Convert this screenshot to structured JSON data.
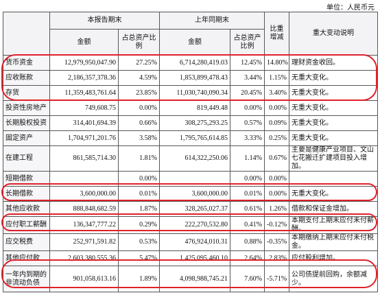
{
  "header": {
    "unit": "单位：人民币元"
  },
  "table": {
    "group_headers": [
      "本报告期末",
      "上年同期末",
      "比重增减",
      "重大变动说明"
    ],
    "sub_headers": [
      "金额",
      "占总资产比例",
      "金额",
      "占总资产比例"
    ],
    "rows": [
      [
        "货币资金",
        "12,979,950,047.90",
        "27.25%",
        "6,714,280,419.03",
        "12.45%",
        "14.80%",
        "理财资金收回。"
      ],
      [
        "应收账款",
        "2,186,357,378.36",
        "4.59%",
        "1,853,899,478.43",
        "3.44%",
        "1.15%",
        "无重大变化。"
      ],
      [
        "存货",
        "11,359,483,761.64",
        "23.85%",
        "11,030,740,090.34",
        "20.45%",
        "3.40%",
        "无重大变化。"
      ],
      [
        "投资性房地产",
        "749,608.75",
        "0.00%",
        "819,449.48",
        "0.00%",
        "0.00%",
        "无重大变化。"
      ],
      [
        "长期股权投资",
        "314,401,694.39",
        "0.66%",
        "308,275,293.25",
        "0.57%",
        "0.09%",
        "无重大变化。"
      ],
      [
        "固定资产",
        "1,704,971,201.76",
        "3.58%",
        "1,795,765,614.85",
        "3.33%",
        "0.25%",
        "无重大变化。"
      ],
      [
        "在建工程",
        "861,585,714.30",
        "1.81%",
        "614,322,250.06",
        "1.14%",
        "0.67%",
        "主要是健康产业项目、文山七花搬迁扩建项目投入增加。"
      ],
      [
        "短期借款",
        null,
        "0.00%",
        null,
        "0.00%",
        "0.00%",
        null
      ],
      [
        "长期借款",
        "3,600,000.00",
        "0.01%",
        "3,600,000.00",
        "0.01%",
        "0.00%",
        "无重大变化。"
      ],
      [
        "其他应收款",
        "888,848,682.59",
        "1.87%",
        "328,265,027.37",
        "0.61%",
        "1.26%",
        "借款和保证金增加。"
      ],
      [
        "应付职工薪酬",
        "136,347,777.22",
        "0.29%",
        "222,270,532.80",
        "0.41%",
        "-0.12%",
        "本期支付上期末应付未付薪酬。"
      ],
      [
        "应交税费",
        "252,971,591.82",
        "0.53%",
        "476,924,010.31",
        "0.88%",
        "-0.35%",
        "本期缴纳上期末应付未付税金。"
      ],
      [
        "其他应付款",
        "2,603,380,555.36",
        "5.47%",
        "1,425,095,460.10",
        "2.64%",
        "2.83%",
        "应付股利增加。"
      ],
      [
        "一年内到期的非流动负债",
        "901,058,613.16",
        "1.89%",
        "4,098,988,745.21",
        "7.60%",
        "-5.71%",
        "公司债提前回购，余额减少。"
      ]
    ]
  }
}
